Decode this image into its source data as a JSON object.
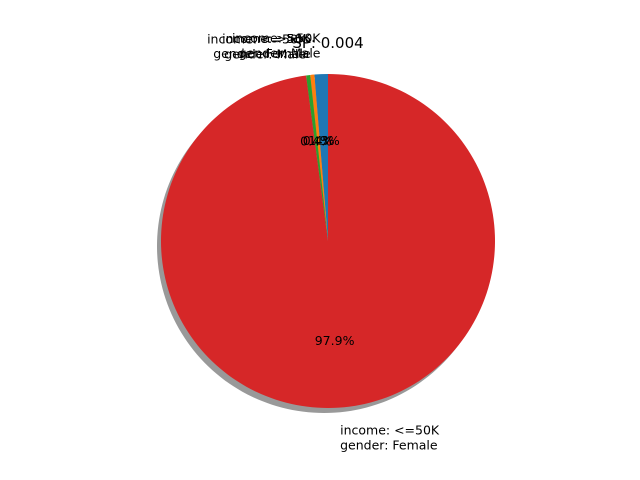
{
  "chart_data": {
    "type": "pie",
    "title": "SP: 0.004",
    "start_angle_deg": 90,
    "direction": "counterclockwise",
    "shadow": true,
    "slices": [
      {
        "label": [
          "income: >50K",
          "gender: Male"
        ],
        "value": 1.3,
        "pct_text": "1.3%",
        "color": "#1f77b4"
      },
      {
        "label": [
          "income: >50K",
          "gender: Female"
        ],
        "value": 0.4,
        "pct_text": "0.4%",
        "color": "#ff7f0e"
      },
      {
        "label": [
          "income: <=50K",
          "gender: Male"
        ],
        "value": 0.4,
        "pct_text": "0.4%",
        "color": "#2ca02c"
      },
      {
        "label": [
          "income: <=50K",
          "gender: Female"
        ],
        "value": 97.9,
        "pct_text": "97.9%",
        "color": "#d62728"
      }
    ]
  }
}
